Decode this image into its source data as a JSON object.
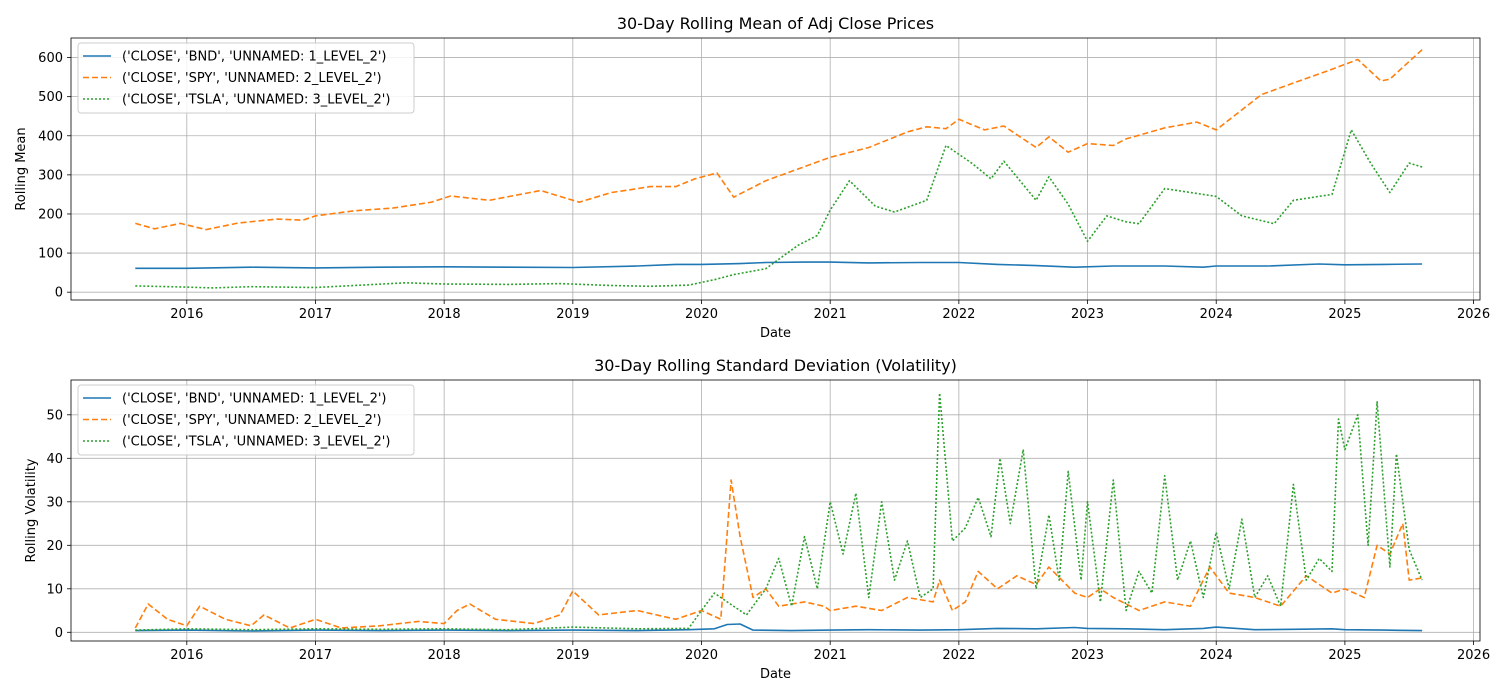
{
  "chart_data": [
    {
      "type": "line",
      "title": "30-Day Rolling Mean of Adj Close Prices",
      "xlabel": "Date",
      "ylabel": "Rolling Mean",
      "xlim": [
        2015.1,
        2026.05
      ],
      "ylim": [
        -20,
        650
      ],
      "x_ticks": [
        "2016",
        "2017",
        "2018",
        "2019",
        "2020",
        "2021",
        "2022",
        "2023",
        "2024",
        "2025",
        "2026"
      ],
      "y_ticks": [
        "0",
        "100",
        "200",
        "300",
        "400",
        "500",
        "600"
      ],
      "grid": true,
      "legend_position": "top-left",
      "series": [
        {
          "name": "('CLOSE', 'BND', 'UNNAMED: 1_LEVEL_2')",
          "color": "#1f77b4",
          "style": "solid",
          "x": [
            2015.6,
            2016.0,
            2016.5,
            2017.0,
            2017.5,
            2018.0,
            2018.5,
            2019.0,
            2019.5,
            2019.8,
            2020.0,
            2020.3,
            2020.5,
            2020.8,
            2021.0,
            2021.3,
            2021.7,
            2022.0,
            2022.3,
            2022.6,
            2022.9,
            2023.2,
            2023.6,
            2023.9,
            2024.0,
            2024.4,
            2024.8,
            2025.0,
            2025.3,
            2025.6
          ],
          "values": [
            61,
            61,
            64,
            62,
            64,
            65,
            64,
            63,
            67,
            71,
            71,
            73,
            76,
            77,
            77,
            75,
            76,
            76,
            71,
            68,
            64,
            67,
            67,
            64,
            67,
            67,
            72,
            70,
            71,
            72
          ]
        },
        {
          "name": "('CLOSE', 'SPY', 'UNNAMED: 2_LEVEL_2')",
          "color": "#ff7f0e",
          "style": "dashed",
          "x": [
            2015.6,
            2015.75,
            2015.95,
            2016.15,
            2016.4,
            2016.7,
            2016.9,
            2017.0,
            2017.3,
            2017.6,
            2017.9,
            2018.05,
            2018.35,
            2018.75,
            2018.9,
            2019.05,
            2019.3,
            2019.45,
            2019.6,
            2019.8,
            2019.95,
            2020.12,
            2020.25,
            2020.5,
            2020.75,
            2021.0,
            2021.3,
            2021.6,
            2021.75,
            2021.9,
            2022.0,
            2022.2,
            2022.35,
            2022.6,
            2022.7,
            2022.85,
            2023.0,
            2023.2,
            2023.3,
            2023.6,
            2023.85,
            2024.0,
            2024.35,
            2024.6,
            2024.9,
            2025.1,
            2025.28,
            2025.35,
            2025.6
          ],
          "values": [
            176,
            162,
            176,
            160,
            177,
            187,
            184,
            195,
            208,
            215,
            230,
            246,
            235,
            260,
            245,
            230,
            255,
            262,
            270,
            270,
            290,
            305,
            243,
            285,
            315,
            345,
            370,
            410,
            423,
            418,
            442,
            415,
            425,
            370,
            397,
            358,
            380,
            375,
            392,
            420,
            435,
            415,
            505,
            535,
            570,
            595,
            540,
            545,
            620
          ]
        },
        {
          "name": "('CLOSE', 'TSLA', 'UNNAMED: 3_LEVEL_2')",
          "color": "#2ca02c",
          "style": "dotted",
          "x": [
            2015.6,
            2016.0,
            2016.2,
            2016.5,
            2017.0,
            2017.3,
            2017.7,
            2018.0,
            2018.5,
            2018.9,
            2019.3,
            2019.6,
            2019.9,
            2020.1,
            2020.25,
            2020.5,
            2020.75,
            2020.9,
            2021.0,
            2021.15,
            2021.35,
            2021.5,
            2021.75,
            2021.9,
            2022.1,
            2022.25,
            2022.35,
            2022.6,
            2022.7,
            2022.85,
            2023.0,
            2023.15,
            2023.3,
            2023.4,
            2023.6,
            2023.8,
            2024.0,
            2024.2,
            2024.45,
            2024.6,
            2024.9,
            2025.05,
            2025.2,
            2025.35,
            2025.5,
            2025.6
          ],
          "values": [
            16,
            13,
            11,
            14,
            12,
            17,
            24,
            21,
            20,
            22,
            17,
            15,
            18,
            32,
            45,
            60,
            120,
            145,
            210,
            285,
            220,
            205,
            235,
            375,
            330,
            290,
            335,
            235,
            295,
            225,
            130,
            195,
            180,
            175,
            265,
            255,
            245,
            195,
            175,
            235,
            250,
            415,
            330,
            255,
            330,
            320
          ]
        }
      ]
    },
    {
      "type": "line",
      "title": "30-Day Rolling Standard Deviation (Volatility)",
      "xlabel": "Date",
      "ylabel": "Rolling Volatility",
      "xlim": [
        2015.1,
        2026.05
      ],
      "ylim": [
        -2,
        58
      ],
      "x_ticks": [
        "2016",
        "2017",
        "2018",
        "2019",
        "2020",
        "2021",
        "2022",
        "2023",
        "2024",
        "2025",
        "2026"
      ],
      "y_ticks": [
        "0",
        "10",
        "20",
        "30",
        "40",
        "50"
      ],
      "grid": true,
      "legend_position": "top-left",
      "series": [
        {
          "name": "('CLOSE', 'BND', 'UNNAMED: 1_LEVEL_2')",
          "color": "#1f77b4",
          "style": "solid",
          "x": [
            2015.6,
            2016.0,
            2016.5,
            2017.0,
            2017.5,
            2018.0,
            2018.5,
            2019.0,
            2019.5,
            2019.9,
            2020.1,
            2020.2,
            2020.3,
            2020.4,
            2020.7,
            2021.0,
            2021.3,
            2021.7,
            2022.0,
            2022.3,
            2022.6,
            2022.9,
            2023.0,
            2023.3,
            2023.6,
            2023.9,
            2024.0,
            2024.3,
            2024.6,
            2024.9,
            2025.0,
            2025.3,
            2025.6
          ],
          "values": [
            0.4,
            0.5,
            0.3,
            0.5,
            0.4,
            0.5,
            0.4,
            0.5,
            0.4,
            0.6,
            0.8,
            1.8,
            1.9,
            0.5,
            0.4,
            0.5,
            0.6,
            0.5,
            0.6,
            0.9,
            0.8,
            1.1,
            0.9,
            0.8,
            0.6,
            0.9,
            1.2,
            0.6,
            0.7,
            0.8,
            0.6,
            0.5,
            0.4
          ]
        },
        {
          "name": "('CLOSE', 'SPY', 'UNNAMED: 2_LEVEL_2')",
          "color": "#ff7f0e",
          "style": "dashed",
          "x": [
            2015.6,
            2015.7,
            2015.85,
            2016.0,
            2016.1,
            2016.3,
            2016.5,
            2016.6,
            2016.8,
            2017.0,
            2017.2,
            2017.5,
            2017.8,
            2018.0,
            2018.1,
            2018.2,
            2018.4,
            2018.7,
            2018.9,
            2019.0,
            2019.2,
            2019.5,
            2019.8,
            2020.0,
            2020.15,
            2020.23,
            2020.3,
            2020.4,
            2020.5,
            2020.6,
            2020.8,
            2020.95,
            2021.0,
            2021.2,
            2021.4,
            2021.6,
            2021.8,
            2021.85,
            2021.95,
            2022.05,
            2022.15,
            2022.3,
            2022.45,
            2022.6,
            2022.7,
            2022.8,
            2022.9,
            2023.0,
            2023.1,
            2023.2,
            2023.4,
            2023.6,
            2023.8,
            2023.95,
            2024.1,
            2024.3,
            2024.5,
            2024.7,
            2024.9,
            2025.0,
            2025.15,
            2025.25,
            2025.35,
            2025.45,
            2025.5,
            2025.6
          ],
          "values": [
            1,
            6.5,
            3,
            1.5,
            6,
            3,
            1.5,
            4,
            1,
            3,
            1,
            1.5,
            2.5,
            2,
            5,
            6.5,
            3,
            2,
            4,
            9.5,
            4,
            5,
            3,
            5,
            3,
            35,
            22,
            8,
            10,
            6,
            7,
            6,
            5,
            6,
            5,
            8,
            7,
            12,
            5,
            7,
            14,
            10,
            13,
            11,
            15,
            12,
            9,
            8,
            10,
            8,
            5,
            7,
            6,
            15,
            9,
            8,
            6,
            13,
            9,
            10,
            8,
            20,
            18,
            25,
            12,
            12.5
          ]
        },
        {
          "name": "('CLOSE', 'TSLA', 'UNNAMED: 3_LEVEL_2')",
          "color": "#2ca02c",
          "style": "dotted",
          "x": [
            2015.6,
            2016.0,
            2016.5,
            2017.0,
            2017.5,
            2018.0,
            2018.5,
            2019.0,
            2019.5,
            2019.9,
            2020.0,
            2020.1,
            2020.2,
            2020.35,
            2020.5,
            2020.6,
            2020.7,
            2020.8,
            2020.9,
            2021.0,
            2021.1,
            2021.2,
            2021.3,
            2021.4,
            2021.5,
            2021.6,
            2021.7,
            2021.8,
            2021.85,
            2021.95,
            2022.05,
            2022.15,
            2022.25,
            2022.32,
            2022.4,
            2022.5,
            2022.6,
            2022.7,
            2022.78,
            2022.85,
            2022.95,
            2023.0,
            2023.1,
            2023.2,
            2023.3,
            2023.4,
            2023.5,
            2023.6,
            2023.7,
            2023.8,
            2023.9,
            2024.0,
            2024.1,
            2024.2,
            2024.3,
            2024.4,
            2024.5,
            2024.6,
            2024.7,
            2024.8,
            2024.9,
            2024.95,
            2025.0,
            2025.1,
            2025.18,
            2025.25,
            2025.35,
            2025.4,
            2025.5,
            2025.6
          ],
          "values": [
            0.5,
            0.8,
            0.6,
            0.8,
            0.7,
            0.8,
            0.6,
            1.2,
            0.8,
            0.9,
            5,
            9,
            7,
            4,
            10,
            17,
            6,
            22,
            10,
            30,
            18,
            32,
            8,
            30,
            12,
            21,
            8,
            10,
            55,
            21,
            24,
            31,
            22,
            40,
            25,
            42,
            10,
            27,
            12,
            37,
            12,
            30,
            7,
            35,
            5,
            14,
            9,
            36,
            12,
            21,
            8,
            23,
            10,
            26,
            8,
            13,
            6,
            34,
            12,
            17,
            14,
            49,
            42,
            50,
            20,
            53,
            15,
            41,
            19,
            12
          ]
        }
      ]
    }
  ]
}
